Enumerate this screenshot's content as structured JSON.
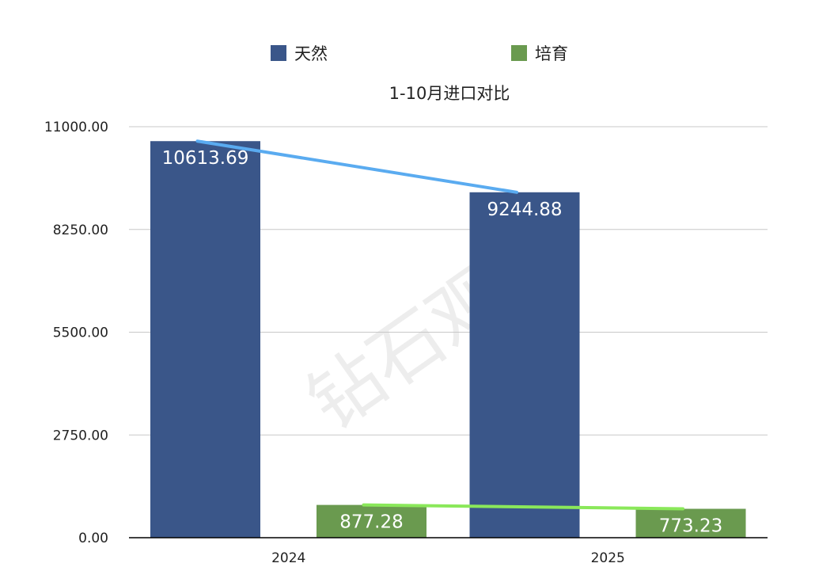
{
  "chart_data": {
    "type": "bar",
    "title": "1-10月进口对比",
    "categories": [
      "2024",
      "2025"
    ],
    "series": [
      {
        "name": "天然",
        "values": [
          10613.69,
          9244.88
        ],
        "color": "#3a5689"
      },
      {
        "name": "培育",
        "values": [
          877.28,
          773.23
        ],
        "color": "#6a9a4f"
      }
    ],
    "data_labels": [
      [
        "10613.69",
        "9244.88"
      ],
      [
        "877.28",
        "773.23"
      ]
    ],
    "y_ticks": [
      "0.00",
      "2750.00",
      "5500.00",
      "8250.00",
      "11000.00"
    ],
    "ylim": [
      0,
      11000
    ],
    "grid": true,
    "legend": "top-center",
    "trend_lines": [
      {
        "series": "天然",
        "color": "#5aabf0"
      },
      {
        "series": "培育",
        "color": "#8ae85a"
      }
    ],
    "watermark": "钻石观察"
  }
}
